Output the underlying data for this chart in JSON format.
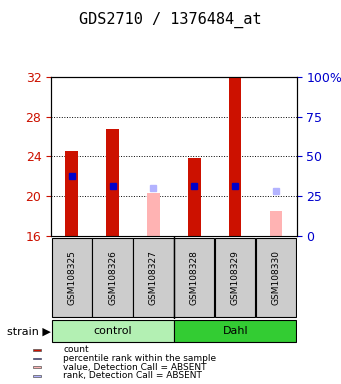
{
  "title": "GDS2710 / 1376484_at",
  "samples": [
    "GSM108325",
    "GSM108326",
    "GSM108327",
    "GSM108328",
    "GSM108329",
    "GSM108330"
  ],
  "groups": [
    {
      "name": "control",
      "color": "#b3f0b3"
    },
    {
      "name": "Dahl",
      "color": "#33cc33"
    }
  ],
  "ylim_left": [
    16,
    32
  ],
  "ylim_right": [
    0,
    100
  ],
  "yticks_left": [
    16,
    20,
    24,
    28,
    32
  ],
  "yticks_right": [
    0,
    25,
    50,
    75,
    100
  ],
  "count_values": [
    24.5,
    26.8,
    null,
    23.8,
    32.0,
    null
  ],
  "count_color": "#cc1100",
  "rank_values": [
    22.0,
    21.0,
    null,
    21.0,
    21.0,
    null
  ],
  "rank_color": "#0000cc",
  "absent_value_values": [
    null,
    null,
    20.3,
    null,
    null,
    18.5
  ],
  "absent_value_color": "#ffb3b3",
  "absent_rank_values": [
    null,
    null,
    20.8,
    null,
    null,
    20.5
  ],
  "absent_rank_color": "#b3b3ff",
  "bar_base": 16,
  "bar_width": 0.3,
  "legend_items": [
    {
      "color": "#cc1100",
      "label": "count"
    },
    {
      "color": "#0000cc",
      "label": "percentile rank within the sample"
    },
    {
      "color": "#ffb3b3",
      "label": "value, Detection Call = ABSENT"
    },
    {
      "color": "#b3b3ff",
      "label": "rank, Detection Call = ABSENT"
    }
  ],
  "grid_yticks": [
    20,
    24,
    28
  ],
  "title_fontsize": 11,
  "tick_fontsize": 9,
  "right_tick_color": "#0000cc",
  "left_tick_color": "#cc1100"
}
